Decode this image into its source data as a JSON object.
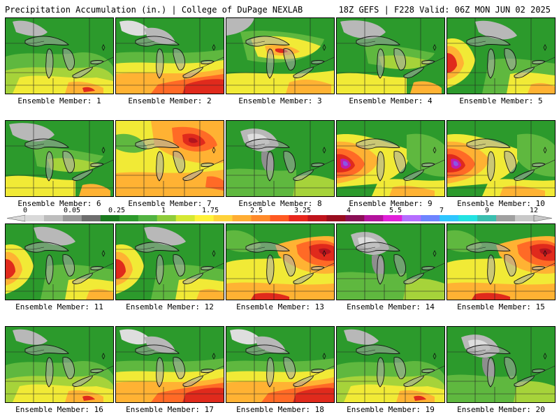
{
  "header": {
    "title_left": "Precipitation Accumulation (in.) | College of DuPage NEXLAB",
    "title_right": "18Z GEFS | F228 Valid: 06Z MON JUN 02 2025"
  },
  "members": [
    {
      "label": "Ensemble Member: 1",
      "pattern": "moderate-south"
    },
    {
      "label": "Ensemble Member: 2",
      "pattern": "heavy-south"
    },
    {
      "label": "Ensemble Member: 3",
      "pattern": "wet-north"
    },
    {
      "label": "Ensemble Member: 4",
      "pattern": "moderate"
    },
    {
      "label": "Ensemble Member: 5",
      "pattern": "wet-west"
    },
    {
      "label": "Ensemble Member: 6",
      "pattern": "moderate"
    },
    {
      "label": "Ensemble Member: 7",
      "pattern": "heavy-north"
    },
    {
      "label": "Ensemble Member: 8",
      "pattern": "dry"
    },
    {
      "label": "Ensemble Member: 9",
      "pattern": "heavy-west"
    },
    {
      "label": "Ensemble Member: 10",
      "pattern": "heavy-west"
    },
    {
      "label": "Ensemble Member: 11",
      "pattern": "wet-west"
    },
    {
      "label": "Ensemble Member: 12",
      "pattern": "wet-west"
    },
    {
      "label": "Ensemble Member: 13",
      "pattern": "heavy-east"
    },
    {
      "label": "Ensemble Member: 14",
      "pattern": "dry"
    },
    {
      "label": "Ensemble Member: 15",
      "pattern": "heavy-east"
    },
    {
      "label": "Ensemble Member: 16",
      "pattern": "moderate-south"
    },
    {
      "label": "Ensemble Member: 17",
      "pattern": "heavy-south"
    },
    {
      "label": "Ensemble Member: 18",
      "pattern": "heavy-south"
    },
    {
      "label": "Ensemble Member: 19",
      "pattern": "moderate-south"
    },
    {
      "label": "Ensemble Member: 20",
      "pattern": "dry"
    }
  ],
  "colorbar": {
    "tick_labels": [
      "0",
      "0.05",
      "0.25",
      "1",
      "1.75",
      "2.5",
      "3.25",
      "4",
      "5.5",
      "7",
      "9",
      "12"
    ],
    "colors": [
      "#d9d9d9",
      "#bdbdbd",
      "#9a9a9a",
      "#6e6e6e",
      "#1a7a1f",
      "#2c9a2c",
      "#52b342",
      "#8fcc3b",
      "#d5e833",
      "#fff23a",
      "#ffd23a",
      "#ffad33",
      "#ff8a2a",
      "#ff5a22",
      "#e8261c",
      "#c0141c",
      "#990d1e",
      "#8a0f55",
      "#b3129c",
      "#e020d8",
      "#b56dff",
      "#6e84ff",
      "#2fc6ff",
      "#23e2e2",
      "#3bbfb0",
      "#a0a0a0",
      "#c8c8c8"
    ]
  }
}
